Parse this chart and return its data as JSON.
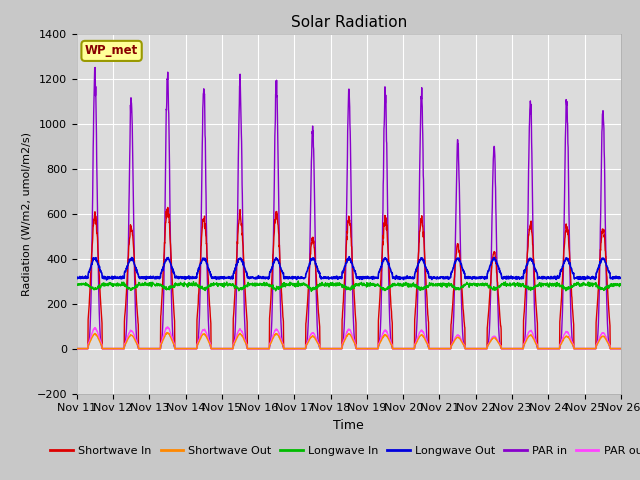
{
  "title": "Solar Radiation",
  "ylabel": "Radiation (W/m2, umol/m2/s)",
  "xlabel": "Time",
  "xlim_start": 0,
  "xlim_end": 15,
  "ylim": [
    -200,
    1400
  ],
  "yticks": [
    -200,
    0,
    200,
    400,
    600,
    800,
    1000,
    1200,
    1400
  ],
  "xtick_labels": [
    "Nov 11",
    "Nov 12",
    "Nov 13",
    "Nov 14",
    "Nov 15",
    "Nov 16",
    "Nov 17",
    "Nov 18",
    "Nov 19",
    "Nov 20",
    "Nov 21",
    "Nov 22",
    "Nov 23",
    "Nov 24",
    "Nov 25",
    "Nov 26"
  ],
  "label_box": "WP_met",
  "series": {
    "shortwave_in": {
      "color": "#dd0000",
      "label": "Shortwave In",
      "lw": 1.0
    },
    "shortwave_out": {
      "color": "#ff8800",
      "label": "Shortwave Out",
      "lw": 1.0
    },
    "longwave_in": {
      "color": "#00bb00",
      "label": "Longwave In",
      "lw": 1.0
    },
    "longwave_out": {
      "color": "#0000dd",
      "label": "Longwave Out",
      "lw": 1.2
    },
    "par_in": {
      "color": "#8800cc",
      "label": "PAR in",
      "lw": 1.0
    },
    "par_out": {
      "color": "#ff44ff",
      "label": "PAR out",
      "lw": 1.0
    }
  },
  "fig_bg": "#c8c8c8",
  "plot_bg": "#dcdcdc"
}
